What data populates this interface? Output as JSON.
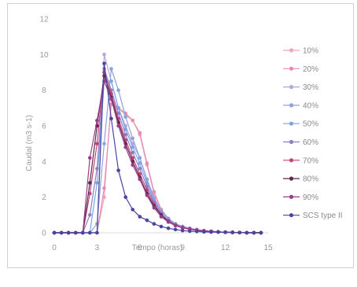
{
  "chart_data": {
    "type": "line",
    "title": "",
    "xlabel": "Tempo (horas)",
    "ylabel": "Caudal (m3 s-1)",
    "xlim": [
      0,
      15
    ],
    "ylim": [
      0,
      12
    ],
    "xticks": [
      "0",
      "3",
      "6",
      "9",
      "12",
      "15"
    ],
    "yticks": [
      "0",
      "2",
      "4",
      "6",
      "8",
      "10",
      "12"
    ],
    "legend_position": "right",
    "grid": false,
    "x": [
      0,
      0.5,
      1,
      1.5,
      2,
      2.5,
      3,
      3.5,
      4,
      4.5,
      5,
      5.5,
      6,
      6.5,
      7,
      7.5,
      8,
      8.5,
      9,
      9.5,
      10,
      10.5,
      11,
      11.5,
      12,
      12.5,
      13,
      13.5,
      14,
      14.5
    ],
    "series": [
      {
        "name": "10%",
        "color": "#f4a3b8",
        "values": [
          0,
          0,
          0,
          0,
          0,
          0,
          0,
          2,
          7.5,
          7,
          6.6,
          6.3,
          5.5,
          3.8,
          2.2,
          1.3,
          0.8,
          0.5,
          0.35,
          0.25,
          0.18,
          0.12,
          0.08,
          0.05,
          0.03,
          0.02,
          0.01,
          0.01,
          0,
          0
        ]
      },
      {
        "name": "20%",
        "color": "#e58bb4",
        "values": [
          0,
          0,
          0,
          0,
          0,
          0,
          0,
          2.5,
          7.2,
          7,
          6.7,
          6.3,
          5.6,
          3.9,
          2.3,
          1.3,
          0.8,
          0.5,
          0.35,
          0.25,
          0.18,
          0.12,
          0.08,
          0.05,
          0.03,
          0.02,
          0.01,
          0.01,
          0,
          0
        ]
      },
      {
        "name": "30%",
        "color": "#b9a3dd",
        "values": [
          0,
          0,
          0,
          0,
          0,
          0,
          0,
          10,
          8.5,
          7,
          6,
          5,
          4.2,
          3,
          2,
          1.2,
          0.8,
          0.5,
          0.35,
          0.25,
          0.15,
          0.1,
          0.07,
          0.05,
          0.03,
          0.02,
          0.01,
          0,
          0,
          0
        ]
      },
      {
        "name": "40%",
        "color": "#8fa1dc",
        "values": [
          0,
          0,
          0,
          0,
          0,
          0,
          0.5,
          5,
          9.2,
          8,
          6.5,
          5.3,
          4.2,
          3,
          1.9,
          1.2,
          0.8,
          0.5,
          0.35,
          0.25,
          0.15,
          0.1,
          0.07,
          0.05,
          0.03,
          0.02,
          0.01,
          0,
          0,
          0
        ]
      },
      {
        "name": "50%",
        "color": "#7aa6e6",
        "values": [
          0,
          0,
          0,
          0,
          0,
          0,
          2.8,
          8.5,
          8.5,
          7,
          5.8,
          4.8,
          3.9,
          2.8,
          1.8,
          1.1,
          0.7,
          0.45,
          0.3,
          0.22,
          0.15,
          0.1,
          0.07,
          0.05,
          0.03,
          0.02,
          0.01,
          0,
          0,
          0
        ]
      },
      {
        "name": "60%",
        "color": "#8e7fc2",
        "values": [
          0,
          0,
          0,
          0,
          0,
          1,
          3.6,
          9.2,
          8,
          6.7,
          5.5,
          4.5,
          3.6,
          2.6,
          1.7,
          1.1,
          0.7,
          0.45,
          0.3,
          0.22,
          0.15,
          0.1,
          0.07,
          0.05,
          0.03,
          0.02,
          0.01,
          0,
          0,
          0
        ]
      },
      {
        "name": "70%",
        "color": "#c2447a",
        "values": [
          0,
          0,
          0,
          0,
          0,
          2.2,
          5,
          9,
          7.8,
          6.4,
          5.2,
          4.2,
          3.3,
          2.4,
          1.6,
          1,
          0.65,
          0.42,
          0.3,
          0.2,
          0.14,
          0.1,
          0.07,
          0.05,
          0.03,
          0.02,
          0.01,
          0,
          0,
          0
        ]
      },
      {
        "name": "80%",
        "color": "#5e2a4a",
        "values": [
          0,
          0,
          0,
          0,
          0,
          2.8,
          6,
          8.8,
          7.6,
          6.2,
          5,
          4,
          3.1,
          2.2,
          1.5,
          1,
          0.62,
          0.4,
          0.28,
          0.2,
          0.14,
          0.1,
          0.07,
          0.05,
          0.03,
          0.02,
          0.01,
          0,
          0,
          0
        ]
      },
      {
        "name": "90%",
        "color": "#9a3c8c",
        "values": [
          0,
          0,
          0,
          0,
          0,
          4.2,
          6.3,
          8.5,
          7.5,
          6,
          4.8,
          3.8,
          3,
          2.1,
          1.4,
          0.9,
          0.6,
          0.4,
          0.28,
          0.2,
          0.14,
          0.1,
          0.07,
          0.05,
          0.03,
          0.02,
          0.01,
          0,
          0,
          0
        ]
      },
      {
        "name": "SCS type II",
        "color": "#4b43a0",
        "values": [
          0,
          0,
          0,
          0,
          0,
          0,
          0,
          9.5,
          6.4,
          3.5,
          2,
          1.3,
          0.9,
          0.7,
          0.5,
          0.35,
          0.25,
          0.18,
          0.12,
          0.09,
          0.07,
          0.05,
          0.04,
          0.03,
          0.02,
          0.01,
          0.01,
          0,
          0,
          0
        ]
      }
    ]
  }
}
